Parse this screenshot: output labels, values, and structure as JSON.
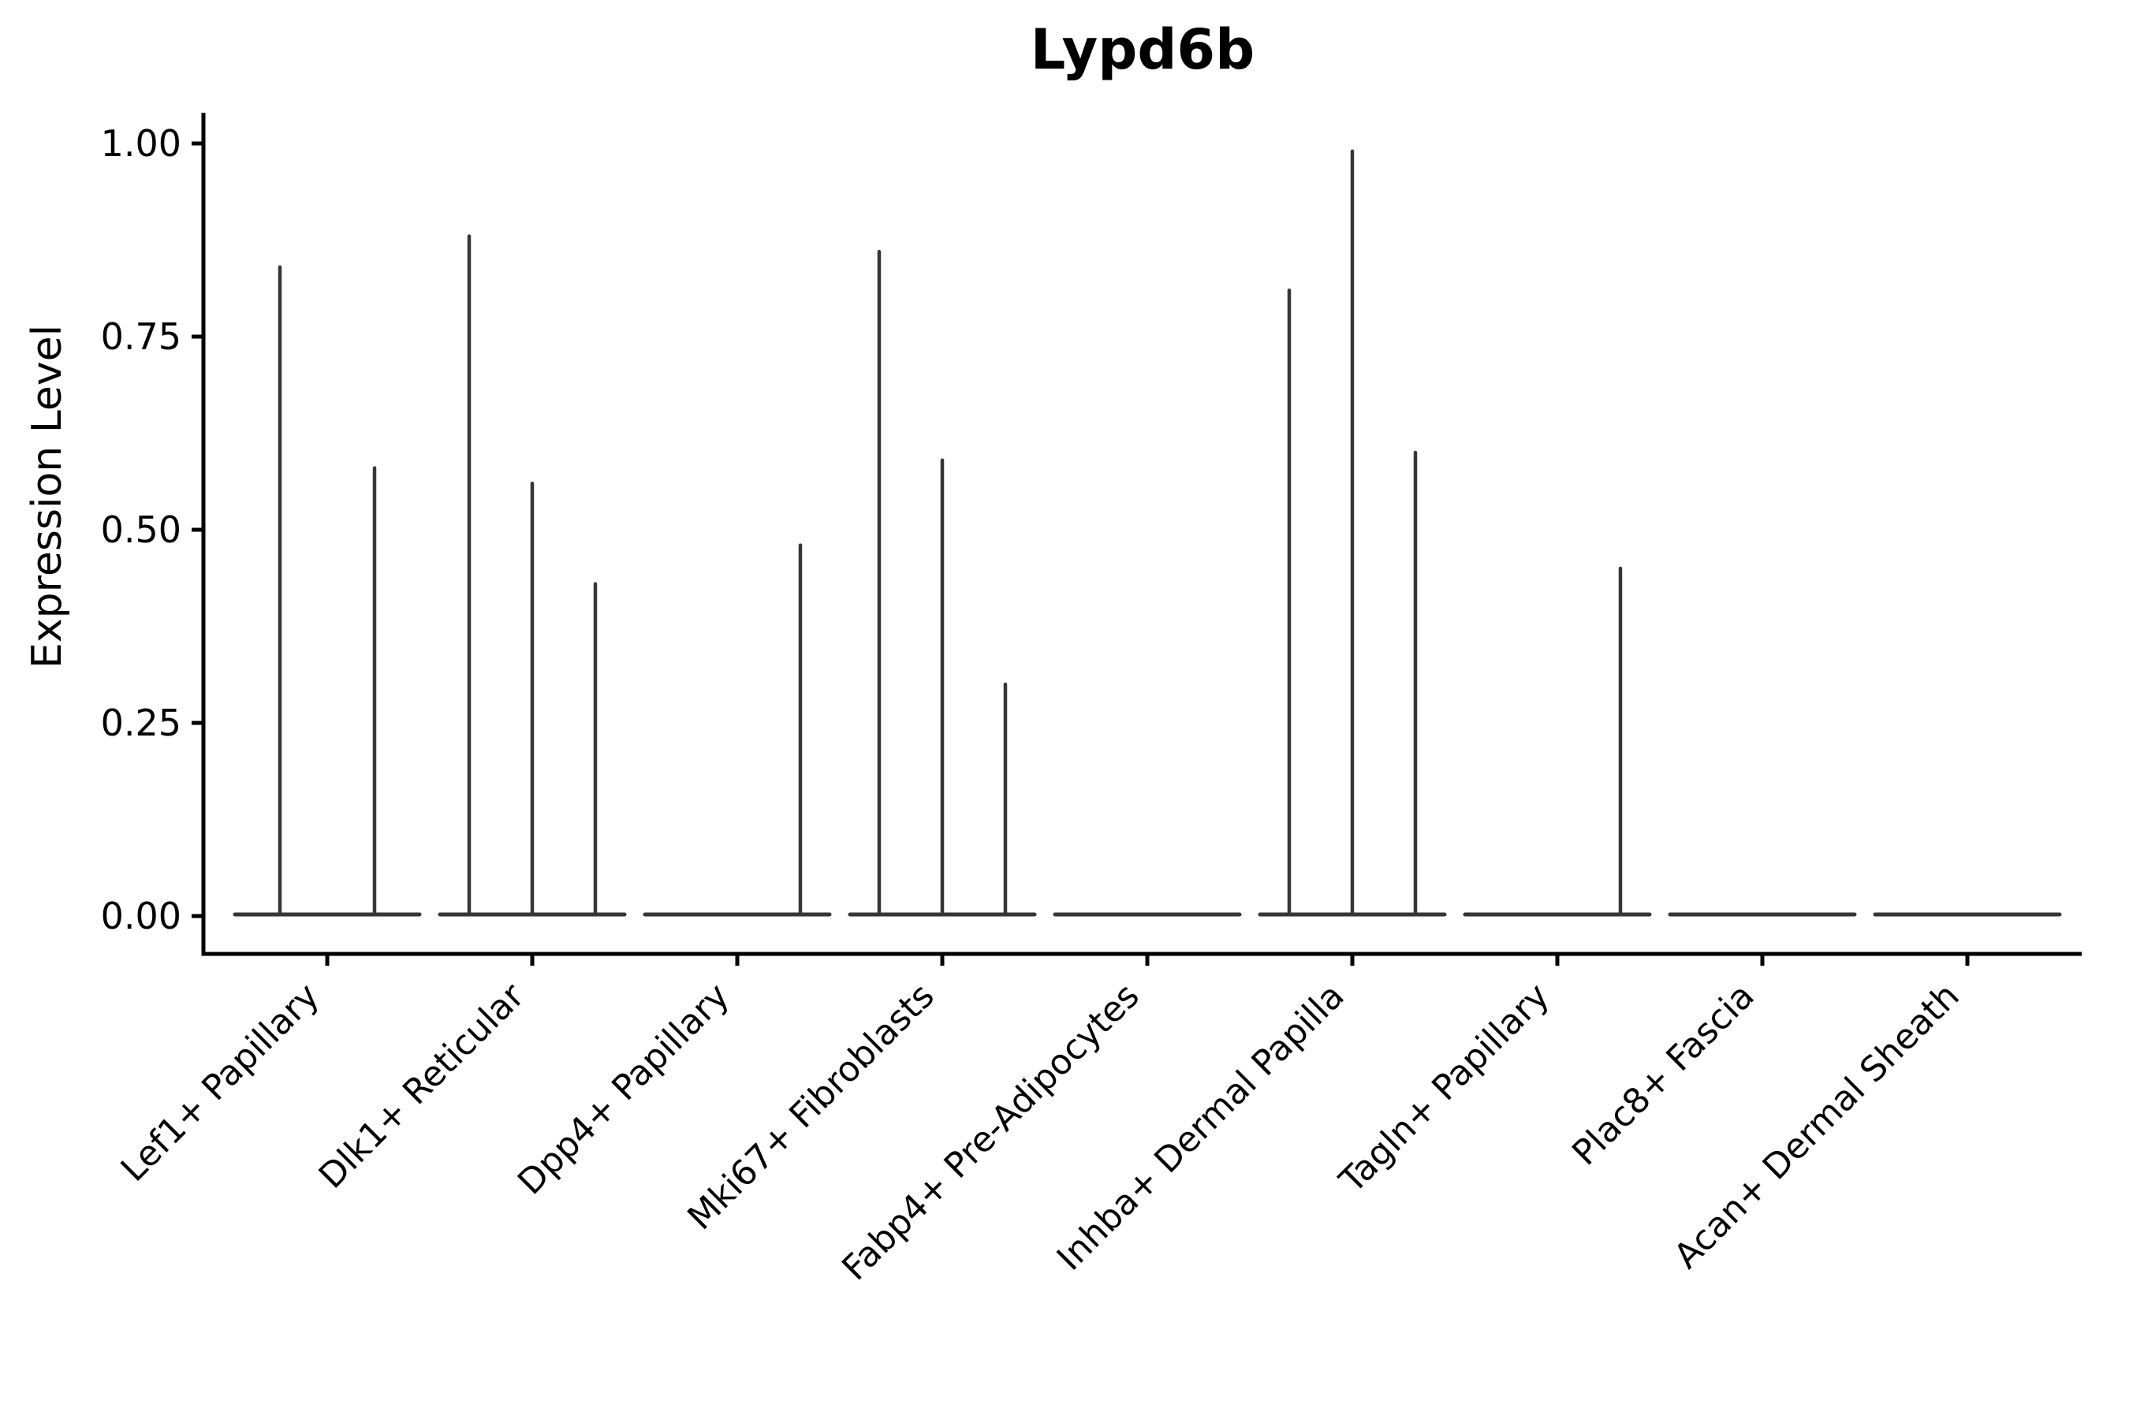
{
  "title": "Lypd6b",
  "chart_data": {
    "type": "violin",
    "title": "Lypd6b",
    "xlabel": "",
    "ylabel": "Expression Level",
    "ylim": [
      -0.05,
      1.04
    ],
    "yticks": [
      0,
      0.25,
      0.5,
      0.75,
      1.0
    ],
    "ytick_labels": [
      "0.00",
      "0.25",
      "0.50",
      "0.75",
      "1.00"
    ],
    "grid": false,
    "legend": "none",
    "categories": [
      "Lef1+ Papillary",
      "Dlk1+ Reticular",
      "Dpp4+ Papillary",
      "Mki67+ Fibroblasts",
      "Fabp4+ Pre-Adipocytes",
      "Inhba+ Dermal Papilla",
      "Tagln+ Papillary",
      "Plac8+ Fascia",
      "Acan+ Dermal Sheath"
    ],
    "groups": [
      {
        "label": "Lef1+ Papillary",
        "slots": 2,
        "violins": [
          {
            "slot": 1,
            "max": 0.84
          },
          {
            "slot": 2,
            "max": 0.58
          }
        ]
      },
      {
        "label": "Dlk1+ Reticular",
        "slots": 3,
        "violins": [
          {
            "slot": 1,
            "max": 0.88
          },
          {
            "slot": 2,
            "max": 0.56
          },
          {
            "slot": 3,
            "max": 0.43
          }
        ]
      },
      {
        "label": "Dpp4+ Papillary",
        "slots": 3,
        "violins": [
          {
            "slot": 3,
            "max": 0.48
          }
        ]
      },
      {
        "label": "Mki67+ Fibroblasts",
        "slots": 3,
        "violins": [
          {
            "slot": 1,
            "max": 0.86
          },
          {
            "slot": 2,
            "max": 0.59
          },
          {
            "slot": 3,
            "max": 0.3
          }
        ]
      },
      {
        "label": "Fabp4+ Pre-Adipocytes",
        "slots": 3,
        "violins": []
      },
      {
        "label": "Inhba+ Dermal Papilla",
        "slots": 3,
        "violins": [
          {
            "slot": 1,
            "max": 0.81
          },
          {
            "slot": 2,
            "max": 0.99
          },
          {
            "slot": 3,
            "max": 0.6
          }
        ]
      },
      {
        "label": "Tagln+ Papillary",
        "slots": 3,
        "violins": [
          {
            "slot": 3,
            "max": 0.45
          }
        ]
      },
      {
        "label": "Plac8+ Fascia",
        "slots": 3,
        "violins": []
      },
      {
        "label": "Acan+ Dermal Sheath",
        "slots": 3,
        "violins": []
      }
    ],
    "colors": {
      "violin_line": "#363636",
      "axis": "#000000",
      "text": "#000000",
      "background": "#ffffff"
    }
  }
}
